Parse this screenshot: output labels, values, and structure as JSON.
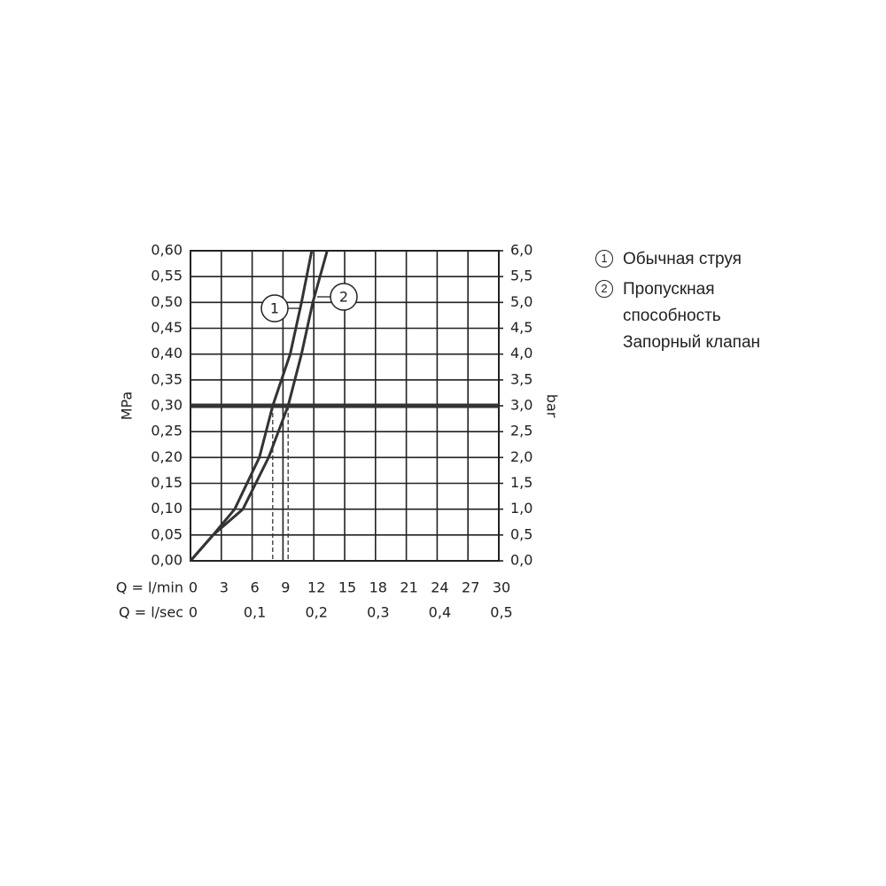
{
  "chart_data": {
    "type": "line",
    "ylabel": "MPa",
    "y2label": "bar",
    "xlabel": "Q = l/min",
    "x2label": "Q = l/sec",
    "xlim": [
      0,
      30
    ],
    "xticks": [
      0,
      3,
      6,
      9,
      12,
      15,
      18,
      21,
      24,
      27,
      30
    ],
    "x2lim": [
      0,
      0.5
    ],
    "x2ticks": [
      0,
      {
        "value": 0.1,
        "label": "0,1"
      },
      {
        "value": 0.2,
        "label": "0,2"
      },
      {
        "value": 0.3,
        "label": "0,3"
      },
      {
        "value": 0.4,
        "label": "0,4"
      },
      {
        "value": 0.5,
        "label": "0,5"
      }
    ],
    "ylim": [
      0,
      0.6
    ],
    "yticks": [
      {
        "value": 0,
        "label": "0,00"
      },
      {
        "value": 0.05,
        "label": "0,05"
      },
      {
        "value": 0.1,
        "label": "0,10"
      },
      {
        "value": 0.15,
        "label": "0,15"
      },
      {
        "value": 0.2,
        "label": "0,20"
      },
      {
        "value": 0.25,
        "label": "0,25"
      },
      {
        "value": 0.3,
        "label": "0,30"
      },
      {
        "value": 0.35,
        "label": "0,35"
      },
      {
        "value": 0.4,
        "label": "0,40"
      },
      {
        "value": 0.45,
        "label": "0,45"
      },
      {
        "value": 0.5,
        "label": "0,50"
      },
      {
        "value": 0.55,
        "label": "0,55"
      },
      {
        "value": 0.6,
        "label": "0,60"
      }
    ],
    "y2lim": [
      0,
      6
    ],
    "y2ticks": [
      {
        "value": 0,
        "label": "0,0"
      },
      {
        "value": 0.5,
        "label": "0,5"
      },
      {
        "value": 1,
        "label": "1,0"
      },
      {
        "value": 1.5,
        "label": "1,5"
      },
      {
        "value": 2,
        "label": "2,0"
      },
      {
        "value": 2.5,
        "label": "2,5"
      },
      {
        "value": 3,
        "label": "3,0"
      },
      {
        "value": 3.5,
        "label": "3,5"
      },
      {
        "value": 4,
        "label": "4,0"
      },
      {
        "value": 4.5,
        "label": "4,5"
      },
      {
        "value": 5,
        "label": "5,0"
      },
      {
        "value": 5.5,
        "label": "5,5"
      },
      {
        "value": 6,
        "label": "6,0"
      }
    ],
    "grid": true,
    "color": "#333333",
    "hline": 0.3,
    "vlines": [
      8,
      9.5
    ],
    "series": [
      {
        "label": "1",
        "name": "Обычная струя",
        "x": [
          0,
          2.2,
          4.3,
          6.7,
          8,
          9.7,
          10.8,
          11.8
        ],
        "y": [
          0,
          0.05,
          0.1,
          0.2,
          0.3,
          0.4,
          0.5,
          0.6
        ]
      },
      {
        "label": "2",
        "name": "Пропускная способность Запорный клапан",
        "x": [
          0,
          2.2,
          5.1,
          7.6,
          9.5,
          10.8,
          11.9,
          13.3
        ],
        "y": [
          0,
          0.05,
          0.1,
          0.2,
          0.3,
          0.4,
          0.5,
          0.6
        ]
      }
    ]
  }
}
